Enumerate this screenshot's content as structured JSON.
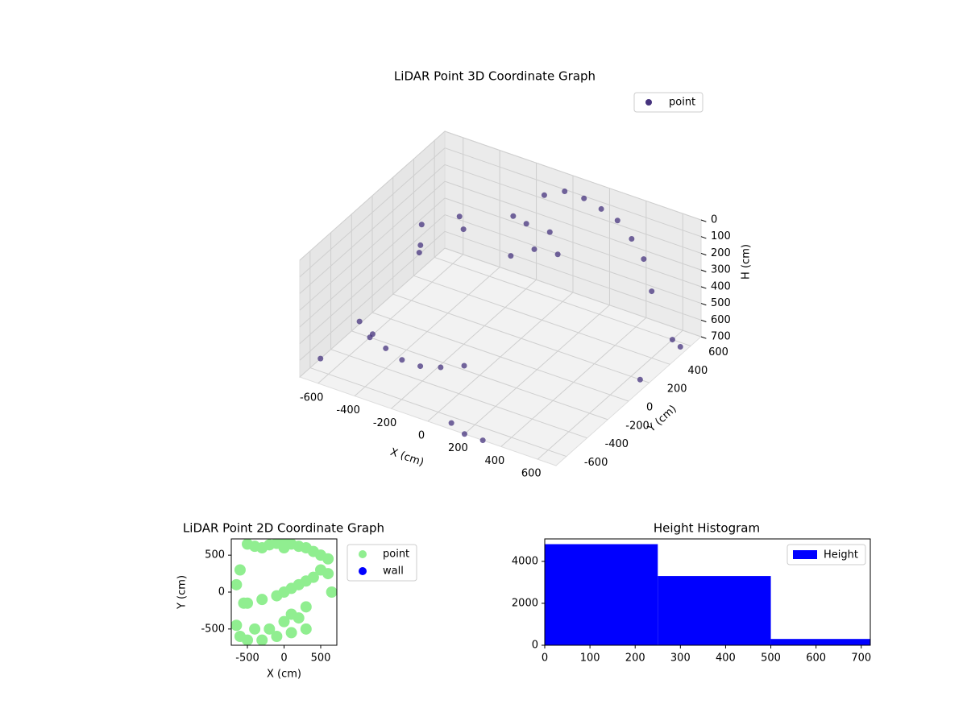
{
  "chart_data": [
    {
      "type": "scatter3d",
      "title": "LiDAR Point 3D Coordinate Graph",
      "xlabel": "X (cm)",
      "ylabel": "Y (cm)",
      "zlabel": "H (cm)",
      "xlim": [
        -700,
        700
      ],
      "ylim": [
        -700,
        700
      ],
      "zlim": [
        0,
        700
      ],
      "z_inverted": true,
      "xticks": [
        -600,
        -400,
        -200,
        0,
        200,
        400,
        600
      ],
      "yticks": [
        -600,
        -400,
        -200,
        0,
        200,
        400,
        600
      ],
      "zticks": [
        0,
        100,
        200,
        300,
        400,
        500,
        600,
        700
      ],
      "grid": true,
      "legend": "upper right",
      "series": [
        {
          "name": "point",
          "color": "#46337e",
          "x": [
            -100,
            0,
            100,
            200,
            300,
            400,
            500,
            600,
            -100,
            0,
            100,
            200,
            0,
            100,
            -600,
            -500,
            -400,
            -300,
            -200,
            -100,
            0,
            -600,
            -550,
            -500,
            -450,
            -400,
            -700,
            -600,
            200,
            100,
            300,
            700,
            650,
            600
          ],
          "y": [
            600,
            620,
            630,
            620,
            600,
            560,
            500,
            400,
            300,
            250,
            300,
            200,
            100,
            150,
            -300,
            -350,
            -400,
            -420,
            -420,
            -400,
            -350,
            300,
            200,
            100,
            400,
            350,
            -500,
            -200,
            -700,
            -650,
            -700,
            500,
            200,
            600
          ],
          "z": [
            100,
            50,
            60,
            80,
            100,
            150,
            200,
            300,
            60,
            40,
            80,
            120,
            150,
            100,
            550,
            560,
            580,
            600,
            600,
            580,
            560,
            300,
            350,
            320,
            250,
            280,
            700,
            700,
            700,
            700,
            700,
            650,
            700,
            700
          ]
        }
      ]
    },
    {
      "type": "scatter",
      "title": "LiDAR Point 2D Coordinate Graph",
      "xlabel": "X (cm)",
      "ylabel": "Y (cm)",
      "xlim": [
        -720,
        720
      ],
      "ylim": [
        -720,
        720
      ],
      "xticks": [
        -500,
        0,
        500
      ],
      "yticks": [
        -500,
        0,
        500
      ],
      "legend": "outside right",
      "series": [
        {
          "name": "point",
          "color": "#90ee90",
          "x": [
            -500,
            -400,
            -300,
            -200,
            -100,
            0,
            100,
            200,
            300,
            400,
            500,
            600,
            -600,
            -650,
            -550,
            -500,
            -300,
            -100,
            0,
            100,
            200,
            300,
            400,
            600,
            650,
            -650,
            -600,
            -400,
            -200,
            0,
            100,
            200,
            300,
            -500,
            -300,
            -100,
            100,
            300,
            0,
            500
          ],
          "y": [
            650,
            620,
            600,
            640,
            660,
            680,
            650,
            620,
            600,
            550,
            500,
            450,
            300,
            100,
            -150,
            -150,
            -100,
            -50,
            0,
            50,
            100,
            150,
            200,
            250,
            0,
            -450,
            -600,
            -500,
            -500,
            -400,
            -300,
            -350,
            -200,
            -650,
            -650,
            -600,
            -550,
            -500,
            600,
            300
          ]
        },
        {
          "name": "wall",
          "color": "#0000ff",
          "x": [],
          "y": []
        }
      ]
    },
    {
      "type": "histogram",
      "title": "Height Histogram",
      "bins": [
        0,
        250,
        500,
        750
      ],
      "counts": [
        4820,
        3300,
        300
      ],
      "color": "#0000ff",
      "name": "Height",
      "xlim": [
        0,
        720
      ],
      "ylim": [
        0,
        5070
      ],
      "xticks": [
        0,
        100,
        200,
        300,
        400,
        500,
        600,
        700
      ],
      "yticks": [
        0,
        2000,
        4000
      ],
      "legend": "upper right"
    }
  ]
}
